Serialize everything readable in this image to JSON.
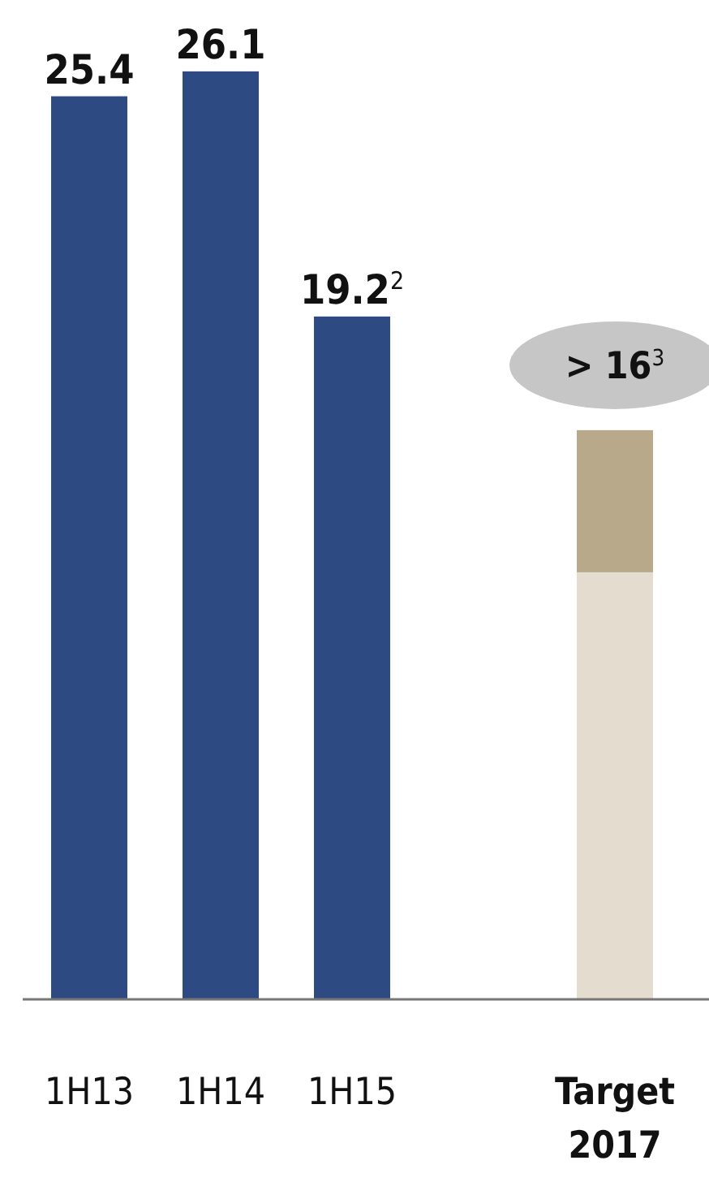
{
  "chart_data": {
    "type": "bar",
    "stacked": true,
    "categories": [
      "1H13",
      "1H14",
      "1H15",
      null,
      "Target 2017"
    ],
    "series": [
      {
        "color": "#2e4a82",
        "values": [
          25.4,
          26.1,
          19.2,
          null,
          null
        ],
        "value_labels": [
          "25.4",
          "26.1",
          "19.2$^{2}$",
          null,
          null
        ]
      },
      {
        "color": "#e3dccf",
        "values": [
          null,
          null,
          null,
          null,
          12
        ]
      },
      {
        "color": "#b8a98a",
        "values": [
          null,
          null,
          null,
          null,
          4
        ]
      }
    ],
    "totals": [
      null,
      null,
      null,
      null,
      "> 16$^{3}$"
    ]
  }
}
